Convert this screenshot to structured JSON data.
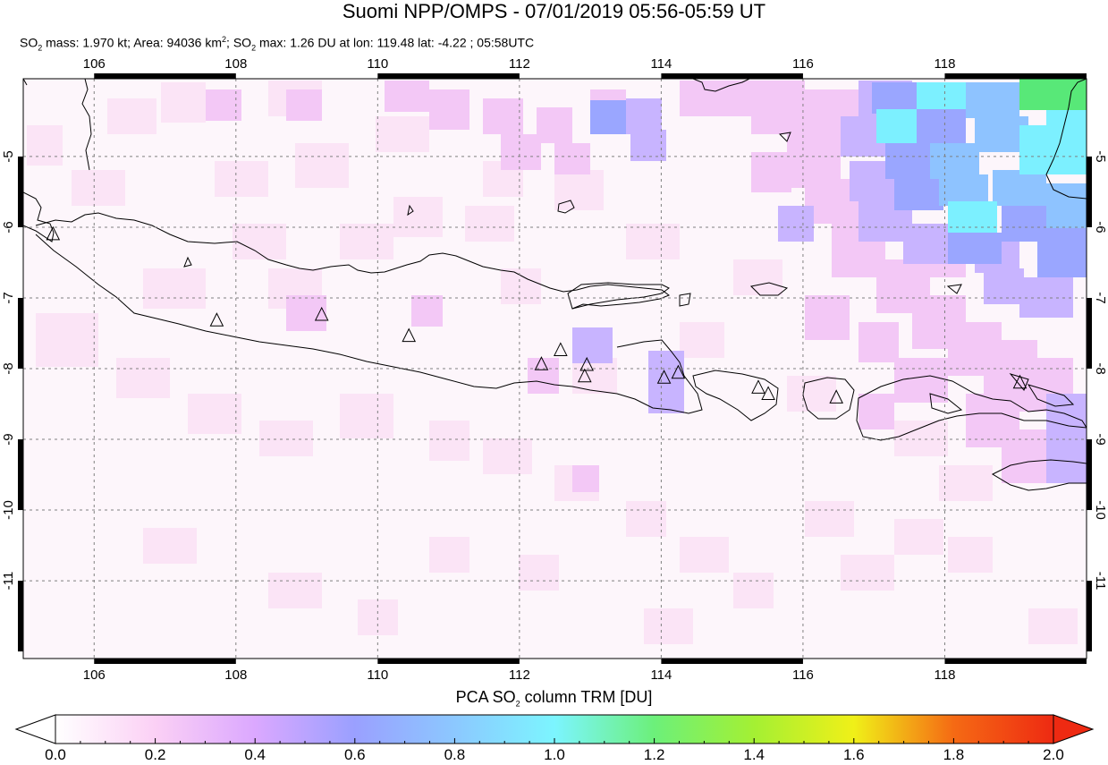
{
  "title": "Suomi NPP/OMPS - 07/01/2019 05:56-05:59 UT",
  "subtitle": {
    "mass_prefix": "SO",
    "mass_sub": "2",
    "mass_text": " mass: 1.970 kt; Area: 94036 km",
    "area_sup": "2",
    "max_prefix": "; SO",
    "max_sub": "2",
    "max_text": " max: 1.26 DU at lon: 119.48 lat: -4.22 ; 05:58UTC"
  },
  "map": {
    "lon_ticks": [
      "106",
      "108",
      "110",
      "112",
      "114",
      "116",
      "118"
    ],
    "lat_ticks": [
      "-5",
      "-6",
      "-7",
      "-8",
      "-9",
      "-10",
      "-11"
    ],
    "lon_values": [
      106,
      108,
      110,
      112,
      114,
      116,
      118
    ],
    "lat_values": [
      -5,
      -6,
      -7,
      -8,
      -9,
      -10,
      -11
    ],
    "lon_range": [
      105,
      120
    ],
    "lat_range": [
      -12.1,
      -3.9
    ],
    "grid": true,
    "volcanoes": [
      {
        "lon": 105.42,
        "lat": -6.1
      },
      {
        "lon": 107.73,
        "lat": -7.32
      },
      {
        "lon": 109.21,
        "lat": -7.24
      },
      {
        "lon": 110.44,
        "lat": -7.54
      },
      {
        "lon": 112.31,
        "lat": -7.94
      },
      {
        "lon": 112.58,
        "lat": -7.74
      },
      {
        "lon": 112.95,
        "lat": -7.95
      },
      {
        "lon": 112.92,
        "lat": -8.11
      },
      {
        "lon": 114.04,
        "lat": -8.13
      },
      {
        "lon": 114.24,
        "lat": -8.06
      },
      {
        "lon": 115.37,
        "lat": -8.27
      },
      {
        "lon": 115.51,
        "lat": -8.36
      },
      {
        "lon": 116.47,
        "lat": -8.41
      },
      {
        "lon": 119.06,
        "lat": -8.2
      }
    ]
  },
  "colorbar": {
    "title_prefix": "PCA SO",
    "title_sub": "2",
    "title_suffix": " column TRM [DU]",
    "ticks": [
      "0.0",
      "0.2",
      "0.4",
      "0.6",
      "0.8",
      "1.0",
      "1.2",
      "1.4",
      "1.6",
      "1.8",
      "2.0"
    ],
    "range": [
      0,
      2.0
    ],
    "colors": [
      "#ffffff",
      "#fbd0f5",
      "#dba8ff",
      "#9aa0ff",
      "#7cf5ff",
      "#6cf07a",
      "#a4f033",
      "#f0f018",
      "#f8b818",
      "#f56a14",
      "#ee2a12"
    ]
  },
  "chart_data": {
    "type": "heatmap",
    "title": "Suomi NPP/OMPS - 07/01/2019 05:56-05:59 UT",
    "quantity": "PCA SO2 column TRM [DU]",
    "so2_mass_kt": 1.97,
    "area_km2": 94036,
    "so2_max_DU": 1.26,
    "max_lon": 119.48,
    "max_lat": -4.22,
    "max_time": "05:58UTC",
    "lon_range": [
      105,
      120
    ],
    "lat_range": [
      -12.1,
      -3.9
    ],
    "value_range": [
      0,
      2.0
    ],
    "pixels": [
      {
        "lon": 118.2,
        "lat": -4.3,
        "value": 1.05
      },
      {
        "lon": 118.9,
        "lat": -4.3,
        "value": 0.95
      },
      {
        "lon": 119.5,
        "lat": -4.3,
        "value": 1.26
      },
      {
        "lon": 117.5,
        "lat": -4.8,
        "value": 1.0
      },
      {
        "lon": 118.2,
        "lat": -4.8,
        "value": 0.85
      },
      {
        "lon": 119.3,
        "lat": -4.9,
        "value": 0.9
      },
      {
        "lon": 117.3,
        "lat": -5.4,
        "value": 0.7
      },
      {
        "lon": 118.0,
        "lat": -5.5,
        "value": 0.95
      },
      {
        "lon": 118.6,
        "lat": -5.6,
        "value": 0.85
      },
      {
        "lon": 119.5,
        "lat": -5.5,
        "value": 0.95
      },
      {
        "lon": 117.5,
        "lat": -6.0,
        "value": 0.6
      },
      {
        "lon": 118.2,
        "lat": -6.2,
        "value": 1.0
      },
      {
        "lon": 118.8,
        "lat": -6.1,
        "value": 0.7
      },
      {
        "lon": 119.5,
        "lat": -6.3,
        "value": 0.75
      },
      {
        "lon": 118.5,
        "lat": -6.6,
        "value": 0.65
      },
      {
        "lon": 113.3,
        "lat": -4.7,
        "value": 0.6
      },
      {
        "lon": 113.0,
        "lat": -7.9,
        "value": 0.55
      },
      {
        "lon": 114.0,
        "lat": -8.1,
        "value": 0.55
      },
      {
        "lon": 119.5,
        "lat": -8.9,
        "value": 0.55
      }
    ]
  }
}
